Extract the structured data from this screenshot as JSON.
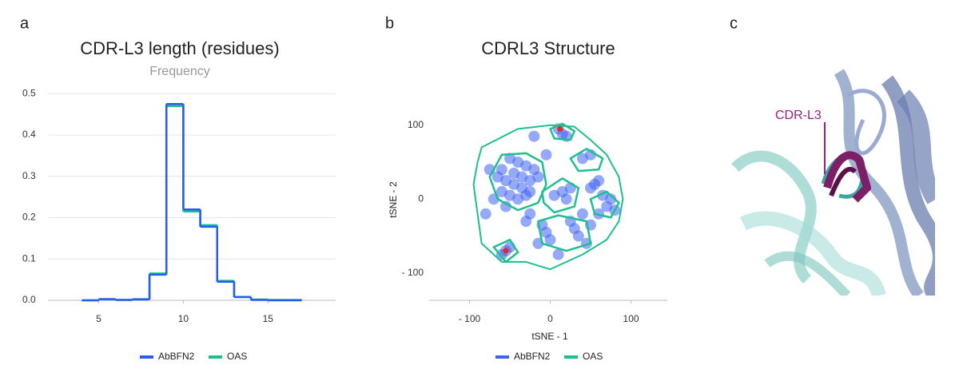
{
  "panels": [
    "a",
    "b",
    "c"
  ],
  "chart_data": [
    {
      "type": "step-histogram",
      "title": "CDR-L3 length  (residues)",
      "subtitle": "Frequency",
      "bins": [
        4,
        5,
        6,
        7,
        8,
        9,
        10,
        11,
        12,
        13,
        14,
        15,
        16,
        17
      ],
      "series": [
        {
          "name": "AbBFN2",
          "color": "#2a5bf0",
          "values": [
            0,
            0.003,
            0.001,
            0.002,
            0.062,
            0.475,
            0.22,
            0.178,
            0.045,
            0.008,
            0.001,
            0,
            0
          ]
        },
        {
          "name": "OAS",
          "color": "#1dbf8e",
          "values": [
            0,
            0.002,
            0.001,
            0.003,
            0.065,
            0.47,
            0.215,
            0.182,
            0.047,
            0.008,
            0.002,
            0.001,
            0.001
          ]
        }
      ],
      "xlim": [
        2,
        19
      ],
      "xticks": [
        5,
        10,
        15
      ],
      "ylim": [
        0,
        0.52
      ],
      "yticks": [
        {
          "value": 0,
          "label": "0.0"
        },
        0.1,
        0.2,
        0.3,
        0.4,
        0.5
      ],
      "grid": true
    },
    {
      "type": "scatter",
      "title": "CDRL3 Structure",
      "xlabel": "tSNE - 1",
      "ylabel": "tSNE - 2",
      "series": [
        {
          "name": "AbBFN2",
          "color": "#3d63f2",
          "x": [
            -60,
            -50,
            -40,
            -30,
            -20,
            -55,
            -45,
            -35,
            -25,
            -15,
            -50,
            -40,
            -30,
            -60,
            -65,
            -45,
            -35,
            -25,
            -70,
            -55,
            10,
            20,
            15,
            40,
            50,
            55,
            60,
            50,
            15,
            20,
            5,
            25,
            60,
            70,
            75,
            65,
            -10,
            -5,
            0,
            30,
            35,
            25,
            45,
            50,
            -55,
            -50,
            -60,
            -25,
            -15,
            80,
            -80,
            -75,
            -30,
            10,
            40,
            -5,
            -20
          ],
          "y": [
            40,
            55,
            50,
            45,
            40,
            25,
            20,
            15,
            25,
            30,
            5,
            0,
            5,
            10,
            30,
            35,
            30,
            10,
            0,
            -10,
            95,
            85,
            88,
            55,
            60,
            20,
            25,
            15,
            10,
            0,
            5,
            15,
            -20,
            -10,
            0,
            5,
            -35,
            -45,
            -55,
            -40,
            -50,
            -30,
            -60,
            -35,
            -70,
            -65,
            -75,
            -20,
            -60,
            -15,
            -20,
            40,
            -30,
            -75,
            -20,
            60,
            85
          ]
        },
        {
          "name": "OAS",
          "color": "#1dbf8e",
          "contours": [
            {
              "x": [
                -85,
                -40,
                0,
                30,
                50,
                70,
                85,
                90,
                85,
                70,
                40,
                0,
                -30,
                -60,
                -85,
                -90,
                -95,
                -90
              ],
              "y": [
                70,
                95,
                100,
                98,
                80,
                60,
                30,
                0,
                -30,
                -55,
                -75,
                -95,
                -85,
                -85,
                -60,
                -20,
                20,
                50
              ]
            },
            {
              "x": [
                -75,
                -60,
                -30,
                -10,
                -5,
                -15,
                -40,
                -65
              ],
              "y": [
                30,
                60,
                62,
                50,
                20,
                -5,
                -15,
                0
              ]
            },
            {
              "x": [
                0,
                15,
                30,
                25,
                5
              ],
              "y": [
                95,
                102,
                92,
                80,
                82
              ]
            },
            {
              "x": [
                25,
                45,
                65,
                60,
                35
              ],
              "y": [
                55,
                68,
                55,
                40,
                38
              ]
            },
            {
              "x": [
                -10,
                15,
                35,
                30,
                5,
                -8
              ],
              "y": [
                10,
                28,
                15,
                -10,
                -18,
                -5
              ]
            },
            {
              "x": [
                -15,
                10,
                45,
                50,
                20,
                -10
              ],
              "y": [
                -30,
                -22,
                -30,
                -60,
                -70,
                -60
              ]
            },
            {
              "x": [
                -70,
                -50,
                -40,
                -55
              ],
              "y": [
                -65,
                -55,
                -72,
                -85
              ]
            },
            {
              "x": [
                50,
                70,
                85,
                75,
                55
              ],
              "y": [
                0,
                10,
                -5,
                -25,
                -20
              ]
            }
          ]
        }
      ],
      "highlights": {
        "color": "#e8271f",
        "x": [
          12,
          -55
        ],
        "y": [
          95,
          -70
        ]
      },
      "xlim": [
        -150,
        145
      ],
      "xticks": [
        {
          "value": -100,
          "label": "- 100"
        },
        0,
        100
      ],
      "ylim": [
        -137,
        130
      ],
      "yticks": [
        {
          "value": -100,
          "label": "- 100"
        },
        0,
        100
      ]
    }
  ],
  "structure": {
    "label": "CDR-L3"
  }
}
